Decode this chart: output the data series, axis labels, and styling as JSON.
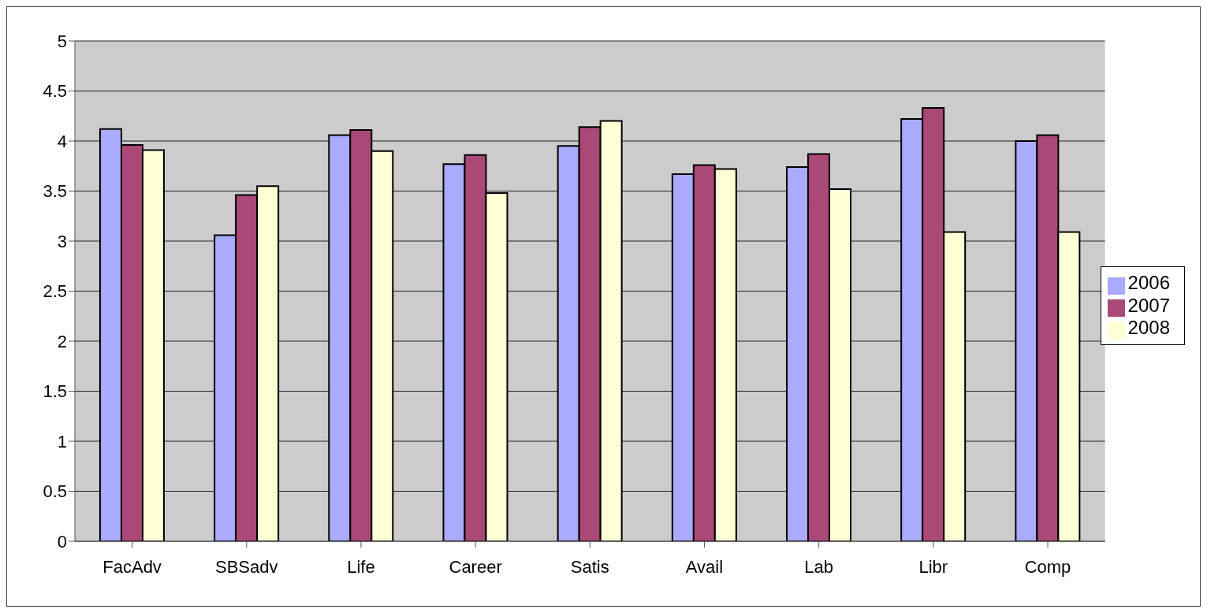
{
  "chart_data": {
    "type": "bar",
    "categories": [
      "FacAdv",
      "SBSadv",
      "Life",
      "Career",
      "Satis",
      "Avail",
      "Lab",
      "Libr",
      "Comp"
    ],
    "series": [
      {
        "name": "2006",
        "color": "#aaaaff",
        "values": [
          4.12,
          3.06,
          4.06,
          3.77,
          3.95,
          3.67,
          3.74,
          4.22,
          4.0
        ]
      },
      {
        "name": "2007",
        "color": "#aa4877",
        "values": [
          3.96,
          3.46,
          4.11,
          3.86,
          4.14,
          3.76,
          3.87,
          4.33,
          4.06
        ]
      },
      {
        "name": "2008",
        "color": "#ffffd6",
        "values": [
          3.91,
          3.55,
          3.9,
          3.48,
          4.2,
          3.72,
          3.52,
          3.09,
          3.09
        ]
      }
    ],
    "ylim": [
      0,
      5
    ],
    "yticks": [
      0,
      0.5,
      1,
      1.5,
      2,
      2.5,
      3,
      3.5,
      4,
      4.5,
      5
    ],
    "grid": "y",
    "legend": "right"
  }
}
